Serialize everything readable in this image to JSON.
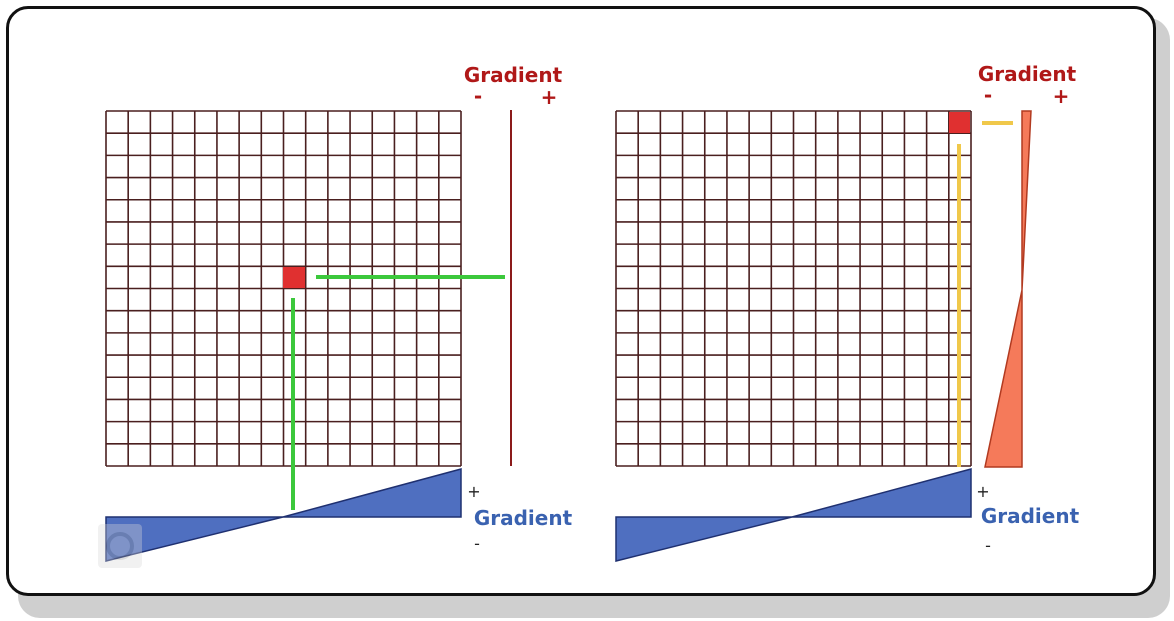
{
  "colors": {
    "grid_line": "#4a1f1f",
    "selected_cell": "#e03030",
    "indicator_left": "#3cc83c",
    "indicator_right": "#f0c84a",
    "horizontal_gradient_fill": "#4f6fc0",
    "horizontal_gradient_stroke": "#1f3070",
    "vertical_gradient_fill": "#f57a5a",
    "vertical_gradient_stroke": "#b23a20",
    "vertical_line": "#8b1a1a",
    "vertical_label": "#b01818",
    "horizontal_label": "#3a62b0"
  },
  "left_panel": {
    "vertical_gradient": {
      "title": "Gradient",
      "minus": "-",
      "plus": "+"
    },
    "horizontal_gradient": {
      "title": "Gradient",
      "minus": "-",
      "plus": "+"
    }
  },
  "right_panel": {
    "vertical_gradient": {
      "title": "Gradient",
      "minus": "-",
      "plus": "+"
    },
    "horizontal_gradient": {
      "title": "Gradient",
      "minus": "-",
      "plus": "+"
    }
  }
}
